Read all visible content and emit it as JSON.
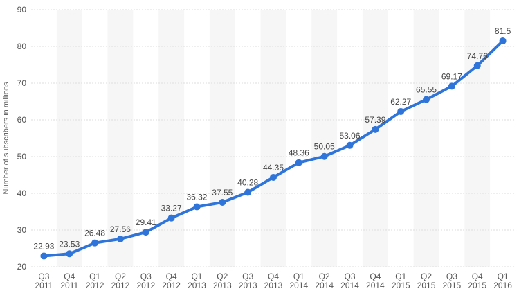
{
  "chart_data": {
    "type": "line",
    "title": "",
    "xlabel": "",
    "ylabel": "Number of subscribers in millions",
    "ylim": [
      20,
      90
    ],
    "yticks": [
      20,
      30,
      40,
      50,
      60,
      70,
      80,
      90
    ],
    "grid": true,
    "legend": "none",
    "colors": {
      "line": "#2f74d8",
      "grid": "#dedede",
      "band": "#f6f6f6",
      "tick_text": "#555555",
      "label_text": "#444444"
    },
    "categories": [
      [
        "Q3",
        "2011"
      ],
      [
        "Q4",
        "2011"
      ],
      [
        "Q1",
        "2012"
      ],
      [
        "Q2",
        "2012"
      ],
      [
        "Q3",
        "2012"
      ],
      [
        "Q4",
        "2012"
      ],
      [
        "Q1",
        "2013"
      ],
      [
        "Q2",
        "2013"
      ],
      [
        "Q3",
        "2013"
      ],
      [
        "Q4",
        "2013"
      ],
      [
        "Q1",
        "2014"
      ],
      [
        "Q2",
        "2014"
      ],
      [
        "Q3",
        "2014"
      ],
      [
        "Q4",
        "2014"
      ],
      [
        "Q1",
        "2015"
      ],
      [
        "Q2",
        "2015"
      ],
      [
        "Q3",
        "2015"
      ],
      [
        "Q4",
        "2015"
      ],
      [
        "Q1",
        "2016"
      ]
    ],
    "series": [
      {
        "values": [
          22.93,
          23.53,
          26.48,
          27.56,
          29.41,
          33.27,
          36.32,
          37.55,
          40.28,
          44.35,
          48.36,
          50.05,
          53.06,
          57.39,
          62.27,
          65.55,
          69.17,
          74.76,
          81.5
        ],
        "labels": [
          "22.93",
          "23.53",
          "26.48",
          "27.56",
          "29.41",
          "33.27",
          "36.32",
          "37.55",
          "40.28",
          "44.35",
          "48.36",
          "50.05",
          "53.06",
          "57.39",
          "62.27",
          "65.55",
          "69.17",
          "74.76",
          "81.5"
        ]
      }
    ]
  }
}
